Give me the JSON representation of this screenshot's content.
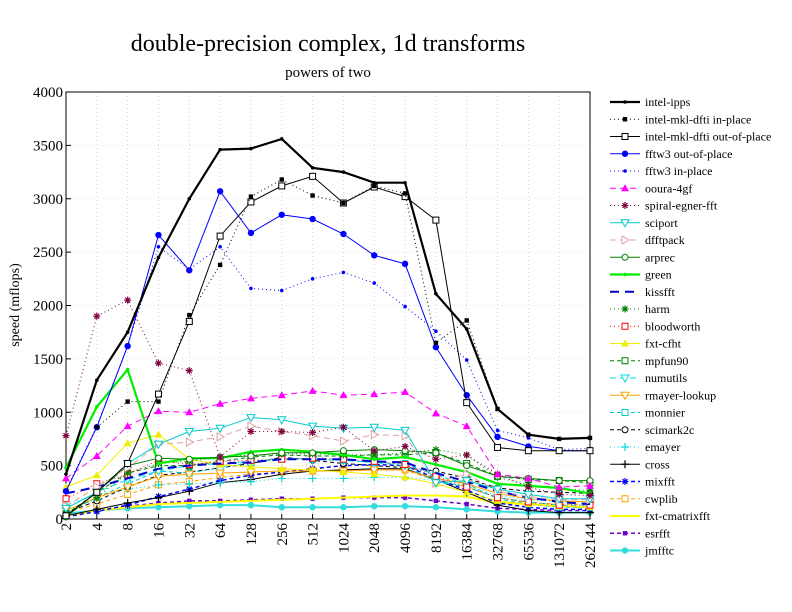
{
  "chart_data": {
    "type": "line",
    "title": "double-precision complex, 1d transforms",
    "subtitle": "powers of two",
    "xlabel": "",
    "ylabel": "speed (mflops)",
    "ylim": [
      0,
      4000
    ],
    "yticks": [
      "0",
      "500",
      "1000",
      "1500",
      "2000",
      "2500",
      "3000",
      "3500",
      "4000"
    ],
    "categories": [
      "2",
      "4",
      "8",
      "16",
      "32",
      "64",
      "128",
      "256",
      "512",
      "1024",
      "2048",
      "4096",
      "8192",
      "16384",
      "32768",
      "65536",
      "131072",
      "262144"
    ],
    "grid": true,
    "legend_position": "right",
    "series": [
      {
        "name": "intel-ipps",
        "color": "#000000",
        "dash": "",
        "width": 2.2,
        "marker": "dot",
        "values": [
          420,
          1300,
          1750,
          2450,
          3000,
          3460,
          3470,
          3560,
          3290,
          3250,
          3150,
          3150,
          2110,
          1780,
          1030,
          790,
          750,
          760
        ]
      },
      {
        "name": "intel-mkl-dfti in-place",
        "color": "#000000",
        "dash": "1 3",
        "width": 1,
        "marker": "square-filled",
        "values": [
          null,
          860,
          1100,
          1100,
          1910,
          2380,
          3020,
          3180,
          3030,
          2960,
          3120,
          3050,
          1650,
          1860,
          1030,
          790,
          750,
          760
        ]
      },
      {
        "name": "intel-mkl-dfti out-of-place",
        "color": "#000000",
        "dash": "",
        "width": 1,
        "marker": "square-open",
        "values": [
          30,
          250,
          520,
          1170,
          1850,
          2650,
          2970,
          3120,
          3210,
          2960,
          3110,
          3020,
          2800,
          1090,
          670,
          640,
          640,
          640
        ]
      },
      {
        "name": "fftw3 out-of-place",
        "color": "#0000ff",
        "dash": "",
        "width": 1,
        "marker": "circle-filled",
        "values": [
          260,
          860,
          1620,
          2660,
          2330,
          3070,
          2680,
          2850,
          2810,
          2670,
          2470,
          2390,
          1610,
          1160,
          770,
          680,
          640,
          640
        ]
      },
      {
        "name": "fftw3 in-place",
        "color": "#0000ff",
        "dash": "1 3",
        "width": 1,
        "marker": "dot",
        "values": [
          270,
          870,
          1620,
          2550,
          2340,
          2550,
          2160,
          2140,
          2250,
          2310,
          2210,
          1990,
          1760,
          1490,
          830,
          760,
          650,
          660
        ]
      },
      {
        "name": "ooura-4gf",
        "color": "#ff00ff",
        "dash": "6 4",
        "width": 1,
        "marker": "triangle-filled",
        "values": [
          380,
          590,
          870,
          1010,
          1000,
          1080,
          1130,
          1160,
          1200,
          1160,
          1170,
          1190,
          990,
          870,
          420,
          380,
          300,
          310
        ]
      },
      {
        "name": "spiral-egner-fft",
        "color": "#800040",
        "dash": "1 3",
        "width": 1,
        "marker": "star",
        "values": [
          780,
          1900,
          2050,
          1460,
          1390,
          580,
          820,
          820,
          810,
          860,
          640,
          680,
          560,
          600,
          420,
          300,
          230,
          220
        ]
      },
      {
        "name": "sciport",
        "color": "#00cccc",
        "dash": "",
        "width": 1,
        "marker": "triangle-down-open",
        "values": [
          100,
          250,
          520,
          700,
          820,
          850,
          950,
          930,
          870,
          850,
          860,
          830,
          340,
          360,
          280,
          230,
          190,
          190
        ]
      },
      {
        "name": "dfftpack",
        "color": "#e0a0a0",
        "dash": "6 4",
        "width": 1,
        "marker": "triangle-right-open",
        "values": [
          120,
          300,
          480,
          700,
          720,
          770,
          870,
          820,
          780,
          730,
          790,
          780,
          340,
          420,
          260,
          210,
          180,
          180
        ]
      },
      {
        "name": "arprec",
        "color": "#008000",
        "dash": "",
        "width": 1,
        "marker": "circle-open",
        "values": [
          20,
          250,
          500,
          570,
          560,
          580,
          590,
          620,
          620,
          640,
          650,
          640,
          620,
          500,
          400,
          380,
          360,
          360
        ]
      },
      {
        "name": "green",
        "color": "#00ee00",
        "dash": "",
        "width": 2.2,
        "marker": "dot",
        "values": [
          480,
          1050,
          1400,
          520,
          570,
          570,
          630,
          650,
          630,
          600,
          560,
          580,
          510,
          440,
          330,
          310,
          290,
          240
        ]
      },
      {
        "name": "kissfft",
        "color": "#0000cc",
        "dash": "9 6",
        "width": 2,
        "marker": "none",
        "values": [
          240,
          300,
          380,
          470,
          500,
          520,
          530,
          560,
          560,
          560,
          540,
          530,
          430,
          350,
          260,
          200,
          160,
          140
        ]
      },
      {
        "name": "harm",
        "color": "#008000",
        "dash": "1 3",
        "width": 1,
        "marker": "star",
        "values": [
          60,
          200,
          430,
          520,
          540,
          580,
          600,
          610,
          610,
          600,
          600,
          620,
          650,
          600,
          390,
          320,
          280,
          270
        ]
      },
      {
        "name": "bloodworth",
        "color": "#ff0000",
        "dash": "1 3",
        "width": 1,
        "marker": "square-open",
        "values": [
          190,
          330,
          420,
          550,
          510,
          540,
          550,
          560,
          570,
          560,
          540,
          510,
          400,
          300,
          200,
          160,
          130,
          130
        ]
      },
      {
        "name": "fxt-cfht",
        "color": "#eeee00",
        "dash": "",
        "width": 1,
        "marker": "triangle-filled",
        "values": [
          300,
          410,
          710,
          790,
          560,
          510,
          490,
          470,
          460,
          440,
          420,
          390,
          330,
          250,
          170,
          140,
          120,
          110
        ]
      },
      {
        "name": "mpfun90",
        "color": "#008000",
        "dash": "4 3",
        "width": 1,
        "marker": "square-open",
        "values": [
          40,
          250,
          430,
          500,
          500,
          540,
          580,
          600,
          590,
          590,
          600,
          600,
          620,
          520,
          400,
          370,
          360,
          340
        ]
      },
      {
        "name": "numutils",
        "color": "#00dddd",
        "dash": "6 4",
        "width": 1,
        "marker": "triangle-down-open",
        "values": [
          100,
          250,
          370,
          450,
          500,
          520,
          540,
          570,
          560,
          550,
          530,
          500,
          350,
          300,
          200,
          160,
          130,
          130
        ]
      },
      {
        "name": "rmayer-lookup",
        "color": "#ffa000",
        "dash": "",
        "width": 1,
        "marker": "triangle-down-open",
        "values": [
          80,
          200,
          300,
          400,
          420,
          430,
          440,
          450,
          450,
          450,
          460,
          460,
          380,
          330,
          240,
          190,
          170,
          160
        ]
      },
      {
        "name": "monnier",
        "color": "#00cccc",
        "dash": "4 3",
        "width": 1,
        "marker": "square-open",
        "values": [
          60,
          200,
          330,
          450,
          430,
          480,
          530,
          560,
          560,
          550,
          530,
          520,
          410,
          330,
          190,
          140,
          110,
          110
        ]
      },
      {
        "name": "scimark2c",
        "color": "#000000",
        "dash": "4 3",
        "width": 1,
        "marker": "circle-open",
        "values": [
          60,
          170,
          300,
          410,
          440,
          480,
          520,
          580,
          550,
          520,
          500,
          480,
          450,
          380,
          290,
          260,
          250,
          240
        ]
      },
      {
        "name": "emayer",
        "color": "#00dddd",
        "dash": "1 3",
        "width": 1,
        "marker": "plus",
        "values": [
          140,
          220,
          280,
          320,
          330,
          340,
          350,
          380,
          380,
          380,
          390,
          390,
          360,
          310,
          220,
          180,
          160,
          160
        ]
      },
      {
        "name": "cross",
        "color": "#000000",
        "dash": "",
        "width": 1,
        "marker": "plus",
        "values": [
          30,
          90,
          150,
          200,
          260,
          340,
          370,
          420,
          450,
          460,
          470,
          470,
          370,
          250,
          130,
          80,
          60,
          60
        ]
      },
      {
        "name": "mixfft",
        "color": "#0000ff",
        "dash": "4 3",
        "width": 1.5,
        "marker": "star",
        "values": [
          20,
          70,
          130,
          210,
          280,
          360,
          410,
          440,
          470,
          500,
          510,
          500,
          380,
          270,
          150,
          110,
          90,
          90
        ]
      },
      {
        "name": "cwplib",
        "color": "#ffa000",
        "dash": "4 3",
        "width": 1,
        "marker": "square-open",
        "values": [
          60,
          140,
          230,
          320,
          350,
          390,
          420,
          440,
          450,
          460,
          460,
          460,
          360,
          300,
          200,
          150,
          140,
          140
        ]
      },
      {
        "name": "fxt-cmatrixfft",
        "color": "#ffff00",
        "dash": "",
        "width": 2,
        "marker": "none",
        "values": [
          30,
          80,
          110,
          140,
          150,
          160,
          170,
          180,
          190,
          200,
          210,
          220,
          220,
          210,
          150,
          140,
          120,
          110
        ]
      },
      {
        "name": "esrfft",
        "color": "#6a00cc",
        "dash": "4 3",
        "width": 1.5,
        "marker": "square-filled",
        "values": [
          30,
          80,
          120,
          150,
          170,
          170,
          180,
          190,
          190,
          200,
          200,
          200,
          170,
          140,
          100,
          90,
          80,
          80
        ]
      },
      {
        "name": "jmfftc",
        "color": "#33dddd",
        "dash": "",
        "width": 2,
        "marker": "circle-filled",
        "values": [
          50,
          80,
          100,
          110,
          120,
          130,
          130,
          110,
          110,
          110,
          120,
          120,
          110,
          90,
          70,
          60,
          60,
          60
        ]
      }
    ]
  }
}
